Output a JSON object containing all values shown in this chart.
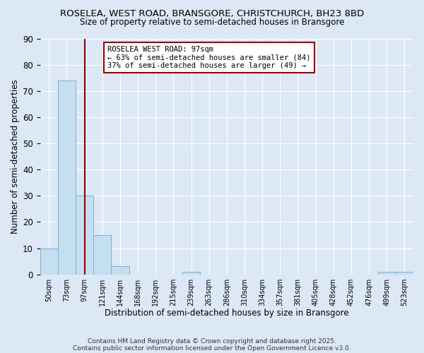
{
  "title_line1": "ROSELEA, WEST ROAD, BRANSGORE, CHRISTCHURCH, BH23 8BD",
  "title_line2": "Size of property relative to semi-detached houses in Bransgore",
  "bins": [
    50,
    73,
    97,
    121,
    144,
    168,
    192,
    215,
    239,
    263,
    286,
    310,
    334,
    357,
    381,
    405,
    428,
    452,
    476,
    499,
    523
  ],
  "counts": [
    10,
    74,
    30,
    15,
    3,
    0,
    0,
    0,
    1,
    0,
    0,
    0,
    0,
    0,
    0,
    0,
    0,
    0,
    0,
    1,
    1
  ],
  "bin_labels": [
    "50sqm",
    "73sqm",
    "97sqm",
    "121sqm",
    "144sqm",
    "168sqm",
    "192sqm",
    "215sqm",
    "239sqm",
    "263sqm",
    "286sqm",
    "310sqm",
    "334sqm",
    "357sqm",
    "381sqm",
    "405sqm",
    "428sqm",
    "452sqm",
    "476sqm",
    "499sqm",
    "523sqm"
  ],
  "property_size_idx": 2,
  "bar_color": "#c5dff0",
  "bar_edge_color": "#7aafd4",
  "vline_color": "#990000",
  "annotation_title": "ROSELEA WEST ROAD: 97sqm",
  "annotation_line1": "← 63% of semi-detached houses are smaller (84)",
  "annotation_line2": "37% of semi-detached houses are larger (49) →",
  "xlabel": "Distribution of semi-detached houses by size in Bransgore",
  "ylabel": "Number of semi-detached properties",
  "ylim": [
    0,
    90
  ],
  "yticks": [
    0,
    10,
    20,
    30,
    40,
    50,
    60,
    70,
    80,
    90
  ],
  "footnote_line1": "Contains HM Land Registry data © Crown copyright and database right 2025.",
  "footnote_line2": "Contains public sector information licensed under the Open Government Licence v3.0.",
  "bg_color": "#dce8f5",
  "plot_bg_color": "#dce8f5",
  "grid_color": "#ffffff",
  "title1_fontsize": 9.5,
  "title2_fontsize": 8.5
}
